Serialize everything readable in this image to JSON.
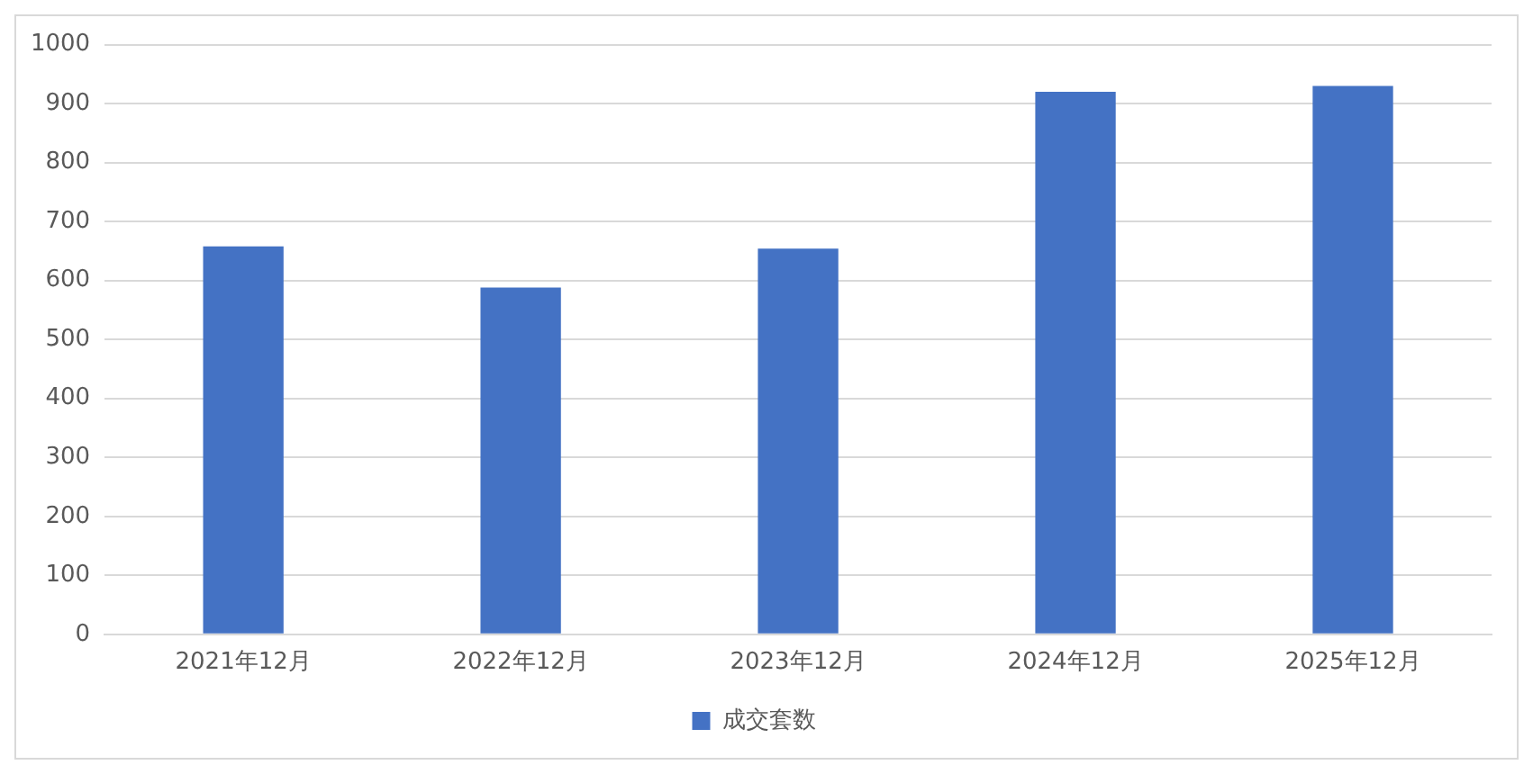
{
  "chart_data": {
    "type": "bar",
    "categories": [
      "2021年12月",
      "2022年12月",
      "2023年12月",
      "2024年12月",
      "2025年12月"
    ],
    "series": [
      {
        "name": "成交套数",
        "color": "#4472c4",
        "values": [
          658,
          588,
          654,
          920,
          930
        ]
      }
    ],
    "ylim": [
      0,
      1000
    ],
    "yticks": [
      0,
      100,
      200,
      300,
      400,
      500,
      600,
      700,
      800,
      900,
      1000
    ],
    "grid": "y",
    "legend": "bottom"
  }
}
